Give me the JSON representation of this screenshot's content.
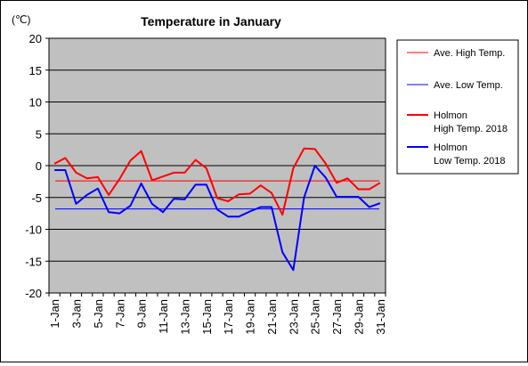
{
  "chart_data": {
    "type": "line",
    "title": "Temperature in January",
    "unit_label": "(℃)",
    "ylim": [
      -20,
      20
    ],
    "y_ticks": [
      20,
      15,
      10,
      5,
      0,
      -5,
      -10,
      -15,
      -20
    ],
    "grid": true,
    "legend_position": "right",
    "categories": [
      "1-Jan",
      "2-Jan",
      "3-Jan",
      "4-Jan",
      "5-Jan",
      "6-Jan",
      "7-Jan",
      "8-Jan",
      "9-Jan",
      "10-Jan",
      "11-Jan",
      "12-Jan",
      "13-Jan",
      "14-Jan",
      "15-Jan",
      "16-Jan",
      "17-Jan",
      "18-Jan",
      "19-Jan",
      "20-Jan",
      "21-Jan",
      "22-Jan",
      "23-Jan",
      "24-Jan",
      "25-Jan",
      "26-Jan",
      "27-Jan",
      "28-Jan",
      "29-Jan",
      "30-Jan",
      "31-Jan"
    ],
    "x_tick_labels": [
      "1-Jan",
      "3-Jan",
      "5-Jan",
      "7-Jan",
      "9-Jan",
      "11-Jan",
      "13-Jan",
      "15-Jan",
      "17-Jan",
      "19-Jan",
      "21-Jan",
      "23-Jan",
      "25-Jan",
      "27-Jan",
      "29-Jan",
      "31-Jan"
    ],
    "series": [
      {
        "name": "Ave. High Temp.",
        "color": "#ff0000",
        "kind": "average",
        "values": [
          -2.4,
          -2.4,
          -2.4,
          -2.4,
          -2.4,
          -2.4,
          -2.4,
          -2.4,
          -2.4,
          -2.4,
          -2.4,
          -2.4,
          -2.4,
          -2.4,
          -2.4,
          -2.4,
          -2.4,
          -2.4,
          -2.4,
          -2.4,
          -2.4,
          -2.4,
          -2.4,
          -2.4,
          -2.4,
          -2.4,
          -2.4,
          -2.4,
          -2.4,
          -2.4,
          -2.4
        ]
      },
      {
        "name": "Ave. Low Temp.",
        "color": "#0000ff",
        "kind": "average",
        "values": [
          -6.8,
          -6.8,
          -6.8,
          -6.8,
          -6.8,
          -6.8,
          -6.8,
          -6.8,
          -6.8,
          -6.8,
          -6.8,
          -6.8,
          -6.8,
          -6.8,
          -6.8,
          -6.8,
          -6.8,
          -6.8,
          -6.8,
          -6.8,
          -6.8,
          -6.8,
          -6.8,
          -6.8,
          -6.8,
          -6.8,
          -6.8,
          -6.8,
          -6.8,
          -6.8,
          -6.8
        ]
      },
      {
        "name": "Holmon\nHigh Temp. 2018",
        "color": "#ff0000",
        "kind": "observed",
        "values": [
          0.3,
          1.2,
          -1.1,
          -2.0,
          -1.8,
          -4.6,
          -2.1,
          0.8,
          2.3,
          -2.3,
          -1.7,
          -1.1,
          -1.1,
          0.9,
          -0.4,
          -5.1,
          -5.6,
          -4.5,
          -4.4,
          -3.1,
          -4.3,
          -7.7,
          -0.4,
          2.7,
          2.6,
          0.3,
          -2.7,
          -2.0,
          -3.7,
          -3.7,
          -2.7
        ]
      },
      {
        "name": "Holmon\nLow Temp. 2018",
        "color": "#0000ff",
        "kind": "observed",
        "values": [
          -0.7,
          -0.7,
          -6.0,
          -4.6,
          -3.6,
          -7.3,
          -7.5,
          -6.3,
          -2.8,
          -6.0,
          -7.3,
          -5.2,
          -5.3,
          -3.0,
          -3.0,
          -6.9,
          -8.0,
          -8.0,
          -7.2,
          -6.5,
          -6.5,
          -13.6,
          -16.4,
          -5.0,
          0.0,
          -1.9,
          -4.9,
          -4.9,
          -4.9,
          -6.5,
          -5.9
        ]
      }
    ]
  }
}
